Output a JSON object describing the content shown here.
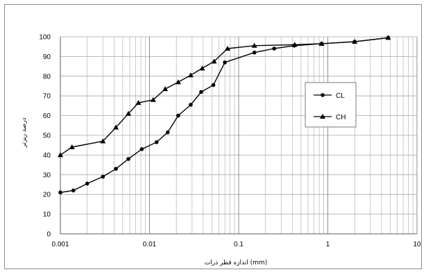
{
  "chart_data": {
    "type": "line",
    "xscale": "log",
    "xlim": [
      0.001,
      10
    ],
    "ylim": [
      0,
      100
    ],
    "xlabel": "اندازه قطر ذرات (mm)",
    "ylabel": "درصد ریزتر",
    "x_tick_labels": [
      "0.001",
      "0.01",
      "0.1",
      "1",
      "10"
    ],
    "y_tick_labels": [
      "0",
      "10",
      "20",
      "30",
      "40",
      "50",
      "60",
      "70",
      "80",
      "90",
      "100"
    ],
    "grid": true,
    "legend_position": "right",
    "series": [
      {
        "name": "CL",
        "marker": "circle",
        "color": "#000000",
        "x": [
          0.001,
          0.0014,
          0.002,
          0.003,
          0.0042,
          0.0058,
          0.0082,
          0.012,
          0.016,
          0.021,
          0.029,
          0.038,
          0.052,
          0.07,
          0.15,
          0.25,
          0.42,
          0.85,
          2.0,
          4.75
        ],
        "y": [
          21,
          22,
          25.5,
          29,
          33,
          38,
          43,
          46.5,
          51.5,
          60,
          65.5,
          72,
          75.5,
          87,
          92,
          94,
          95.5,
          96.5,
          97.5,
          99.5
        ]
      },
      {
        "name": "CH",
        "marker": "triangle",
        "color": "#000000",
        "x": [
          0.001,
          0.00135,
          0.003,
          0.0042,
          0.0058,
          0.0075,
          0.011,
          0.015,
          0.021,
          0.029,
          0.039,
          0.053,
          0.075,
          0.15,
          0.425,
          0.85,
          2.0,
          4.75
        ],
        "y": [
          40,
          44,
          47,
          54,
          61,
          66.5,
          68,
          73.5,
          77,
          80.5,
          84,
          87.5,
          94,
          95.5,
          96,
          96.5,
          97.5,
          99.5
        ]
      }
    ]
  }
}
